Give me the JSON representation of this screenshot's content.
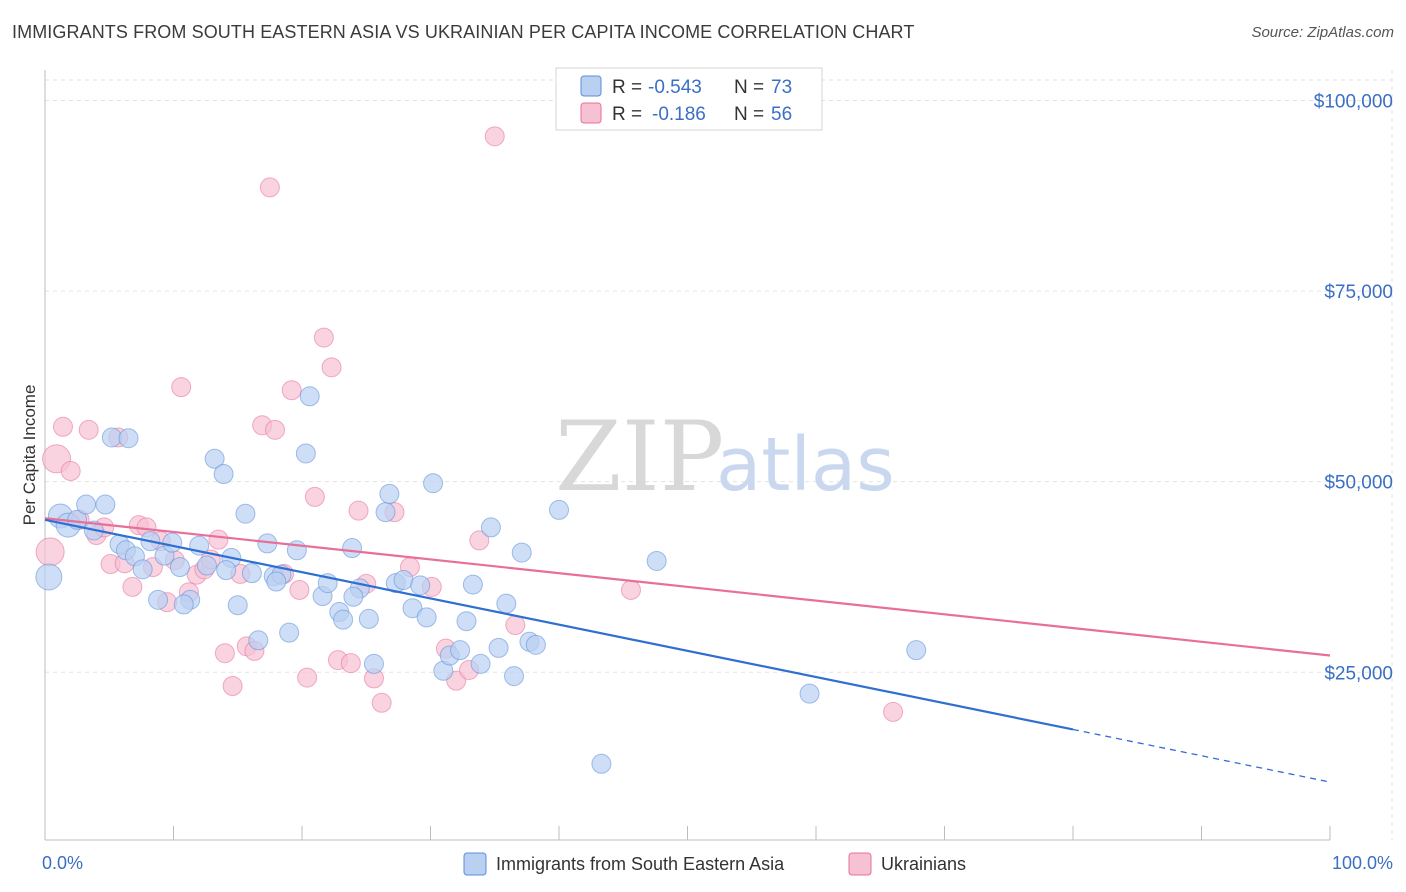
{
  "header": {
    "title": "IMMIGRANTS FROM SOUTH EASTERN ASIA VS UKRAINIAN PER CAPITA INCOME CORRELATION CHART",
    "source": "Source: ZipAtlas.com"
  },
  "watermark": {
    "zip": "ZIP",
    "atlas": "atlas"
  },
  "legend": {
    "rows": [
      {
        "r_label": "R =",
        "r_value": "-0.543",
        "n_label": "N =",
        "n_value": "73"
      },
      {
        "r_label": "R =",
        "r_value": "-0.186",
        "n_label": "N =",
        "n_value": "56"
      }
    ]
  },
  "chart_data": {
    "type": "scatter",
    "title": "IMMIGRANTS FROM SOUTH EASTERN ASIA VS UKRAINIAN PER CAPITA INCOME CORRELATION CHART",
    "xlabel": "",
    "ylabel": "Per Capita Income",
    "xlim": [
      0,
      100
    ],
    "ylim": [
      3000,
      104000
    ],
    "x_tick_labels": [
      "0.0%",
      "100.0%"
    ],
    "y_ticks": [
      25000,
      50000,
      75000,
      100000
    ],
    "y_tick_labels": [
      "$25,000",
      "$50,000",
      "$75,000",
      "$100,000"
    ],
    "grid": true,
    "legend_position": "top-center",
    "colors": {
      "blue": "#5b8ed8",
      "pink": "#e86f9a",
      "blue_fill": "#b9d0f2",
      "pink_fill": "#f6c1d3"
    },
    "series": [
      {
        "name": "Immigrants from South Eastern Asia",
        "color": "#5b8ed8",
        "trend": {
          "x0": 0,
          "y0": 45000,
          "x1": 80,
          "y1": 17500,
          "dash_to_x": 100,
          "dash_to_y": 10600
        },
        "points": [
          [
            0.3,
            37500
          ],
          [
            1.2,
            45500
          ],
          [
            1.8,
            44300
          ],
          [
            2.5,
            45000
          ],
          [
            3.2,
            47000
          ],
          [
            3.8,
            43600
          ],
          [
            4.7,
            47000
          ],
          [
            5.2,
            55800
          ],
          [
            5.8,
            41800
          ],
          [
            6.3,
            41000
          ],
          [
            7.0,
            40200
          ],
          [
            7.6,
            38500
          ],
          [
            8.2,
            42200
          ],
          [
            8.8,
            34500
          ],
          [
            9.3,
            40300
          ],
          [
            9.9,
            42000
          ],
          [
            10.5,
            38800
          ],
          [
            11.3,
            34500
          ],
          [
            12.0,
            41600
          ],
          [
            12.6,
            39000
          ],
          [
            13.2,
            53000
          ],
          [
            13.9,
            51000
          ],
          [
            14.5,
            40000
          ],
          [
            15.0,
            33800
          ],
          [
            15.6,
            45800
          ],
          [
            16.1,
            38000
          ],
          [
            16.6,
            29200
          ],
          [
            17.3,
            41900
          ],
          [
            17.8,
            37600
          ],
          [
            18.4,
            37800
          ],
          [
            19.0,
            30200
          ],
          [
            19.6,
            41000
          ],
          [
            20.3,
            53700
          ],
          [
            20.6,
            61200
          ],
          [
            21.6,
            35000
          ],
          [
            22.0,
            36700
          ],
          [
            22.9,
            32900
          ],
          [
            23.2,
            31900
          ],
          [
            23.9,
            41300
          ],
          [
            24.5,
            36000
          ],
          [
            25.2,
            32000
          ],
          [
            25.6,
            26100
          ],
          [
            26.5,
            46000
          ],
          [
            26.8,
            48400
          ],
          [
            27.3,
            36700
          ],
          [
            27.9,
            37100
          ],
          [
            28.6,
            33400
          ],
          [
            29.2,
            36400
          ],
          [
            29.7,
            32200
          ],
          [
            30.2,
            49800
          ],
          [
            31.0,
            25200
          ],
          [
            31.5,
            27200
          ],
          [
            32.3,
            27900
          ],
          [
            32.8,
            31700
          ],
          [
            33.3,
            36500
          ],
          [
            33.9,
            26100
          ],
          [
            34.7,
            44000
          ],
          [
            35.3,
            28200
          ],
          [
            35.9,
            34000
          ],
          [
            36.5,
            24500
          ],
          [
            37.1,
            40700
          ],
          [
            37.7,
            29000
          ],
          [
            38.2,
            28600
          ],
          [
            40.0,
            46300
          ],
          [
            43.3,
            13000
          ],
          [
            47.6,
            39600
          ],
          [
            59.5,
            22200
          ],
          [
            67.8,
            27900
          ],
          [
            6.5,
            55700
          ],
          [
            10.8,
            33900
          ],
          [
            14.1,
            38400
          ],
          [
            18.0,
            36900
          ],
          [
            24.0,
            34900
          ]
        ]
      },
      {
        "name": "Ukrainians",
        "color": "#e86f9a",
        "trend": {
          "x0": 0,
          "y0": 45200,
          "x1": 100,
          "y1": 27200
        },
        "points": [
          [
            0.4,
            40800
          ],
          [
            0.9,
            53000
          ],
          [
            1.4,
            57200
          ],
          [
            2.0,
            51400
          ],
          [
            2.7,
            45000
          ],
          [
            3.4,
            56800
          ],
          [
            4.0,
            43000
          ],
          [
            4.6,
            44000
          ],
          [
            5.1,
            39200
          ],
          [
            5.7,
            55800
          ],
          [
            6.2,
            39300
          ],
          [
            6.8,
            36200
          ],
          [
            7.3,
            44300
          ],
          [
            7.9,
            44000
          ],
          [
            8.4,
            38800
          ],
          [
            9.0,
            42200
          ],
          [
            9.5,
            34200
          ],
          [
            10.1,
            39700
          ],
          [
            10.6,
            62400
          ],
          [
            11.2,
            35500
          ],
          [
            11.8,
            37800
          ],
          [
            12.4,
            38500
          ],
          [
            12.9,
            39800
          ],
          [
            13.5,
            42400
          ],
          [
            14.0,
            27500
          ],
          [
            14.6,
            23200
          ],
          [
            15.2,
            37900
          ],
          [
            15.7,
            28400
          ],
          [
            16.3,
            27800
          ],
          [
            16.9,
            57400
          ],
          [
            17.5,
            88600
          ],
          [
            17.9,
            56800
          ],
          [
            18.6,
            37900
          ],
          [
            19.2,
            62000
          ],
          [
            19.8,
            35800
          ],
          [
            20.4,
            24300
          ],
          [
            21.0,
            48000
          ],
          [
            21.7,
            68900
          ],
          [
            22.3,
            65000
          ],
          [
            22.8,
            26600
          ],
          [
            23.8,
            26200
          ],
          [
            24.4,
            46200
          ],
          [
            25.0,
            36600
          ],
          [
            25.6,
            24200
          ],
          [
            26.2,
            21000
          ],
          [
            27.2,
            46000
          ],
          [
            28.4,
            38800
          ],
          [
            30.1,
            36200
          ],
          [
            31.2,
            28100
          ],
          [
            32.0,
            23900
          ],
          [
            33.0,
            25300
          ],
          [
            33.8,
            42300
          ],
          [
            35.0,
            95300
          ],
          [
            36.6,
            31200
          ],
          [
            45.6,
            35800
          ],
          [
            66.0,
            19800
          ]
        ]
      }
    ]
  },
  "bottom_legend": {
    "items": [
      {
        "label": "Immigrants from South Eastern Asia"
      },
      {
        "label": "Ukrainians"
      }
    ]
  }
}
